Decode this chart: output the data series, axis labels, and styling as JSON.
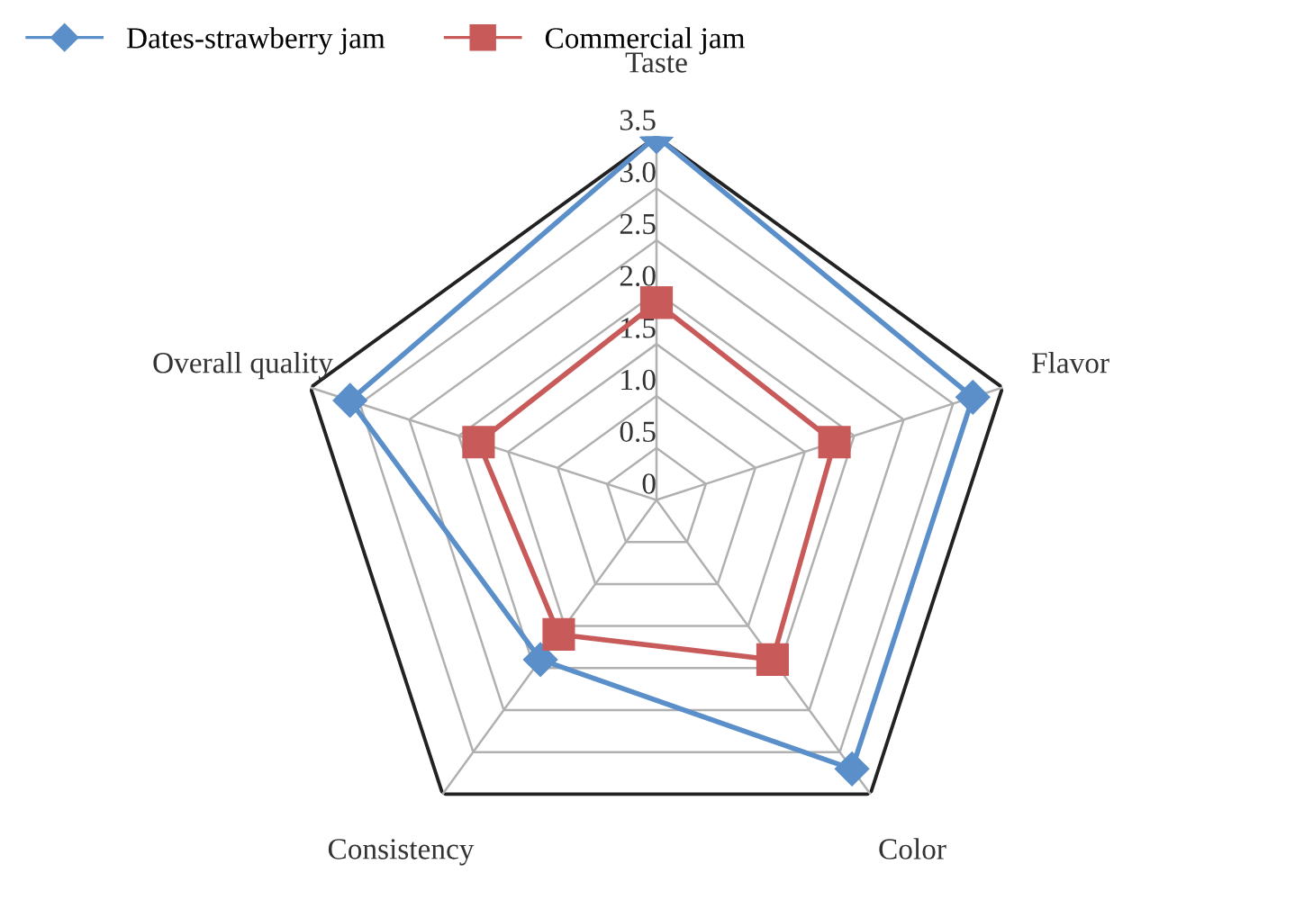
{
  "chart_data": {
    "type": "radar",
    "categories": [
      "Taste",
      "Flavor",
      "Color",
      "Consistency",
      "Overall quality"
    ],
    "series": [
      {
        "name": "Dates-strawberry jam",
        "color": "#5b8fc9",
        "marker": "diamond",
        "values": [
          3.5,
          3.2,
          3.2,
          1.9,
          3.1
        ]
      },
      {
        "name": "Commercial jam",
        "color": "#c85a5a",
        "marker": "square",
        "values": [
          1.9,
          1.8,
          1.9,
          1.6,
          1.8
        ]
      }
    ],
    "ylim": [
      0,
      3.5
    ],
    "yticks": [
      0,
      0.5,
      {
        "value": 1,
        "label": "1.0"
      },
      1.5,
      {
        "value": 2,
        "label": "2.0"
      },
      2.5,
      {
        "value": 3,
        "label": "3.0"
      },
      3.5
    ],
    "grid": true,
    "legend": "top left"
  }
}
